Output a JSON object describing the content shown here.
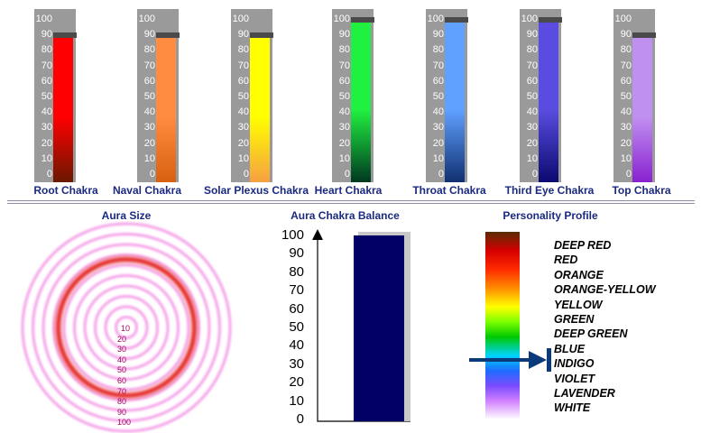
{
  "scale_ticks": [
    "100",
    "90",
    "80",
    "70",
    "60",
    "50",
    "40",
    "30",
    "20",
    "10",
    "0"
  ],
  "chakras": [
    {
      "label": "Root Chakra",
      "level": 90,
      "color_top": "#ff0000",
      "color_bottom": "#6a1800"
    },
    {
      "label": "Naval Chakra",
      "level": 90,
      "color_top": "#ff8c40",
      "color_bottom": "#d86010"
    },
    {
      "label": "Solar Plexus Chakra",
      "level": 90,
      "color_top": "#ffff00",
      "color_bottom": "#f7a040"
    },
    {
      "label": "Heart Chakra",
      "level": 100,
      "color_top": "#20f040",
      "color_bottom": "#003820"
    },
    {
      "label": "Throat Chakra",
      "level": 100,
      "color_top": "#60a0ff",
      "color_bottom": "#103070"
    },
    {
      "label": "Third Eye Chakra",
      "level": 100,
      "color_top": "#5a4ce0",
      "color_bottom": "#0a0a70"
    },
    {
      "label": "Top Chakra",
      "level": 90,
      "color_top": "#c090f0",
      "color_bottom": "#8a20d0"
    }
  ],
  "aura": {
    "title": "Aura Size",
    "ticks": [
      "10",
      "20",
      "30",
      "40",
      "50",
      "60",
      "70",
      "80",
      "90",
      "100"
    ],
    "value": 70
  },
  "balance": {
    "title": "Aura Chakra Balance",
    "ticks": [
      "100",
      "90",
      "80",
      "70",
      "60",
      "50",
      "40",
      "30",
      "20",
      "10",
      "0"
    ],
    "value": 100,
    "bar_color": "#000066"
  },
  "personality": {
    "title": "Personality Profile",
    "items": [
      "DEEP RED",
      "RED",
      "ORANGE",
      "ORANGE-YELLOW",
      "YELLOW",
      "GREEN",
      "DEEP GREEN",
      "BLUE",
      "INDIGO",
      "VIOLET",
      "LAVENDER",
      "WHITE"
    ],
    "selected": "INDIGO",
    "pointer_color": "#0a3a7a"
  }
}
